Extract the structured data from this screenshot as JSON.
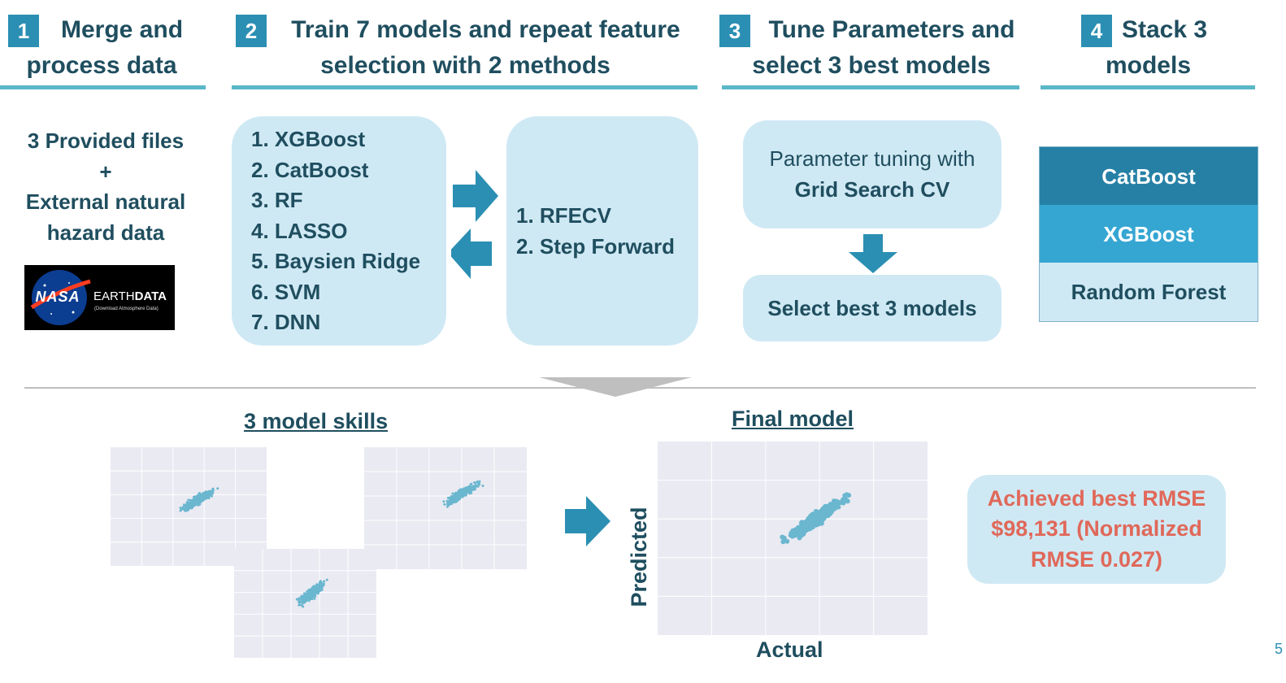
{
  "steps": [
    {
      "number": "1",
      "title_line1": "Merge and",
      "title_line2": "process data"
    },
    {
      "number": "2",
      "title_line1": "Train 7 models and repeat feature",
      "title_line2": "selection with 2 methods"
    },
    {
      "number": "3",
      "title_line1": "Tune Parameters and",
      "title_line2": "select 3 best models"
    },
    {
      "number": "4",
      "title_line1": "Stack 3",
      "title_line2": "models"
    }
  ],
  "data_sources": {
    "line1": "3 Provided files",
    "line2": "+",
    "line3": "External natural",
    "line4": "hazard data",
    "logo_nasa": "NASA",
    "logo_earth": "EARTH",
    "logo_data": "DATA",
    "logo_sub": "(Download Atmosphere Data)"
  },
  "models": [
    "1. XGBoost",
    "2. CatBoost",
    "3. RF",
    "4. LASSO",
    "5. Baysien Ridge",
    "6. SVM",
    "7. DNN"
  ],
  "feature_selection": [
    "1. RFECV",
    "2.  Step Forward"
  ],
  "tuning": {
    "line1": "Parameter tuning with",
    "line2": "Grid Search CV",
    "select": "Select best 3 models"
  },
  "stack": {
    "items": [
      "CatBoost",
      "XGBoost",
      "Random Forest"
    ],
    "colors": [
      "#2680a6",
      "#35a6d2",
      "#cfe9f4"
    ]
  },
  "bottom": {
    "skills_title": "3 model skills",
    "final_title": "Final model",
    "ylabel": "Predicted",
    "xlabel": "Actual",
    "result_line1": "Achieved best RMSE",
    "result_line2": "$98,131 (Normalized",
    "result_line3": "RMSE 0.027)",
    "page_number": "5"
  },
  "colors": {
    "accent": "#2b8fb3",
    "dark_text": "#1f4e5f",
    "light_box": "#cfe9f4",
    "rule": "#5ab7c7",
    "point": "#6ab7cf",
    "result_text": "#e0685a"
  }
}
